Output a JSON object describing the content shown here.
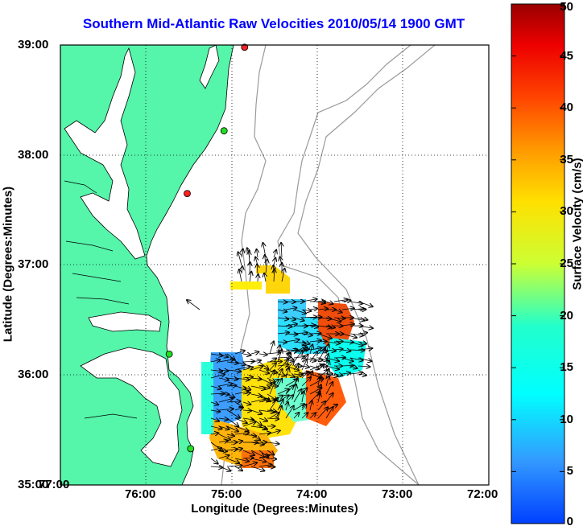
{
  "title": "Southern Mid-Atlantic Raw Velocities 2010/05/14 1900 GMT",
  "map": {
    "xlabel": "Longitude (Degrees:Minutes)",
    "ylabel": "Latitude (Degrees:Minutes)",
    "lon_ticks": [
      "77:00",
      "76:00",
      "75:00",
      "74:00",
      "73:00",
      "72:00"
    ],
    "lat_ticks": [
      "39:00",
      "38:00",
      "37:00",
      "36:00",
      "35:00"
    ],
    "lon_range": [
      -77,
      -72
    ],
    "lat_range": [
      35,
      39
    ],
    "grid": "dotted",
    "land_color": "#55f5aa",
    "water_color": "#ffffff",
    "bathymetry_color": "#9a9a9a"
  },
  "colorbar": {
    "label": "Surface Velocity (cm/s)",
    "ticks": [
      "0",
      "5",
      "10",
      "15",
      "20",
      "25",
      "30",
      "35",
      "40",
      "45",
      "50"
    ],
    "range": [
      0,
      50
    ],
    "colormap": "jet"
  },
  "stations": [
    {
      "color": "#ff2020",
      "lon": -74.85,
      "lat": 38.98
    },
    {
      "color": "#22dd22",
      "lon": -75.09,
      "lat": 38.22
    },
    {
      "color": "#ff2020",
      "lon": -75.52,
      "lat": 37.65
    },
    {
      "color": "#22dd22",
      "lon": -75.73,
      "lat": 36.19
    },
    {
      "color": "#22dd22",
      "lon": -75.48,
      "lat": 35.33
    }
  ]
}
